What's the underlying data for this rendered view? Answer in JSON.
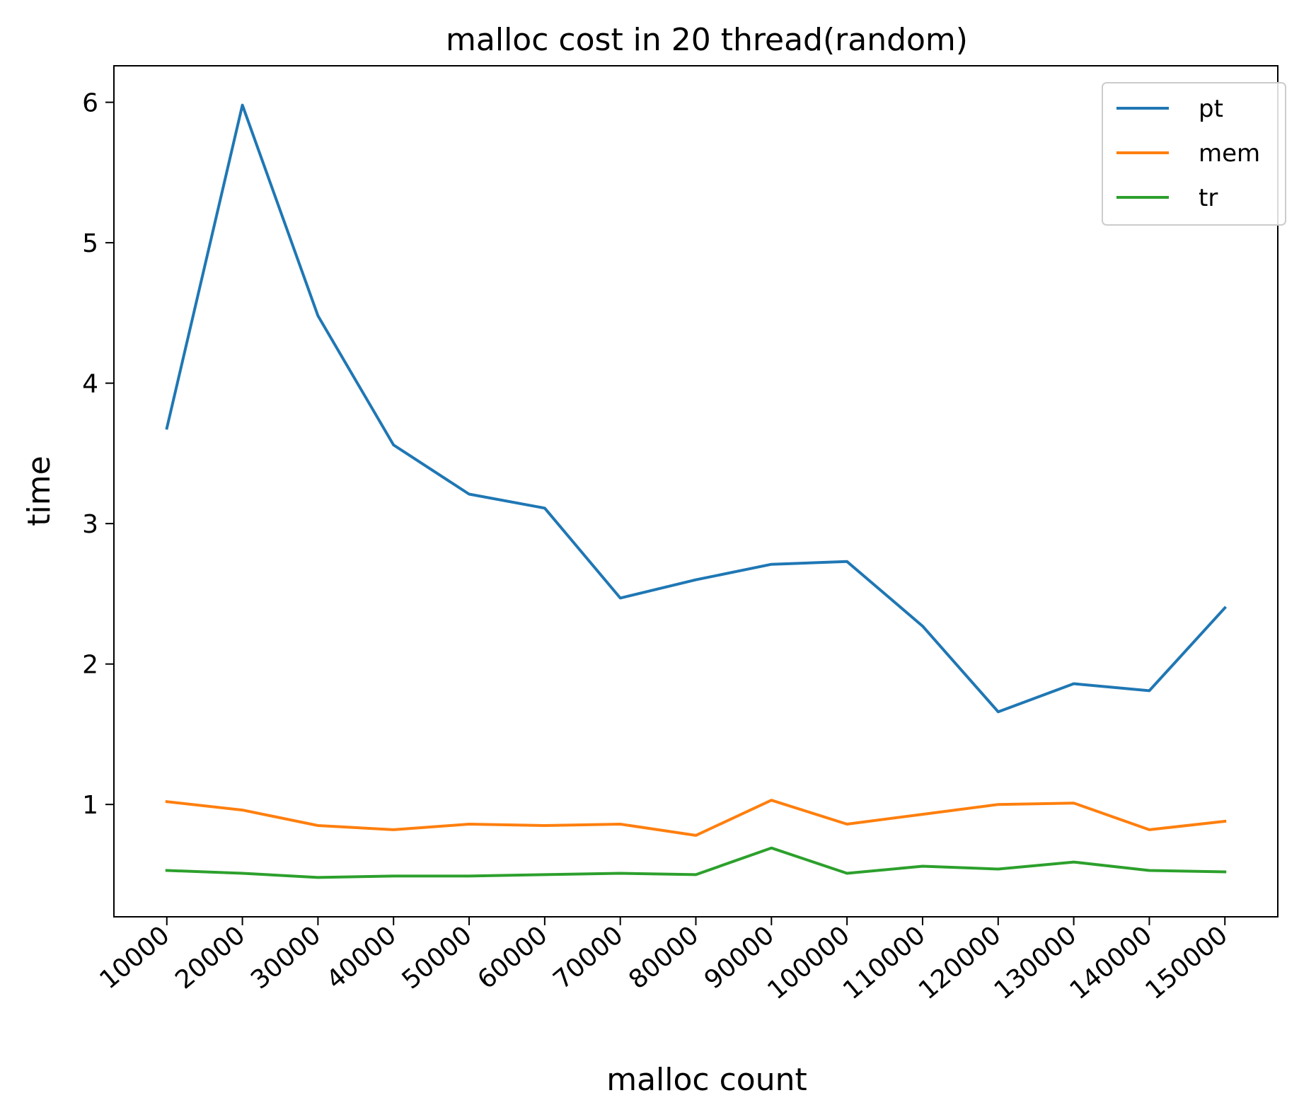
{
  "chart_data": {
    "type": "line",
    "title": "malloc cost in 20 thread(random)",
    "xlabel": "malloc count",
    "ylabel": "time",
    "x": [
      10000,
      20000,
      30000,
      40000,
      50000,
      60000,
      70000,
      80000,
      90000,
      100000,
      110000,
      120000,
      130000,
      140000,
      150000
    ],
    "x_tick_labels": [
      "10000",
      "20000",
      "30000",
      "40000",
      "50000",
      "60000",
      "70000",
      "80000",
      "90000",
      "100000",
      "110000",
      "120000",
      "130000",
      "140000",
      "150000"
    ],
    "y_ticks": [
      1,
      2,
      3,
      4,
      5,
      6
    ],
    "y_tick_labels": [
      "1",
      "2",
      "3",
      "4",
      "5",
      "6"
    ],
    "xlim": [
      3000,
      157000
    ],
    "ylim": [
      0.2,
      6.26
    ],
    "grid": false,
    "legend_position": "top-right",
    "series": [
      {
        "name": "pt",
        "color": "#1f77b4",
        "values": [
          3.68,
          5.98,
          4.48,
          3.56,
          3.21,
          3.11,
          2.47,
          2.6,
          2.71,
          2.73,
          2.27,
          1.66,
          1.86,
          1.81,
          2.4
        ]
      },
      {
        "name": "mem",
        "color": "#ff7f0e",
        "values": [
          1.02,
          0.96,
          0.85,
          0.82,
          0.86,
          0.85,
          0.86,
          0.78,
          1.03,
          0.86,
          0.93,
          1.0,
          1.01,
          0.82,
          0.88
        ]
      },
      {
        "name": "tr",
        "color": "#2ca02c",
        "values": [
          0.53,
          0.51,
          0.48,
          0.49,
          0.49,
          0.5,
          0.51,
          0.5,
          0.69,
          0.51,
          0.56,
          0.54,
          0.59,
          0.53,
          0.52
        ]
      }
    ]
  }
}
